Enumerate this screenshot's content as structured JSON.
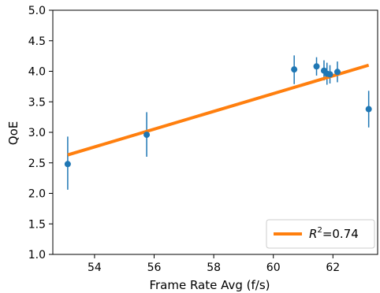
{
  "chart_data": {
    "type": "scatter",
    "xlabel": "Frame Rate Avg (f/s)",
    "ylabel": "QoE",
    "xlim": [
      52.6,
      63.5
    ],
    "ylim": [
      1.0,
      5.0
    ],
    "xticks": [
      54,
      56,
      58,
      60,
      62
    ],
    "yticks": [
      1.0,
      1.5,
      2.0,
      2.5,
      3.0,
      3.5,
      4.0,
      4.5,
      5.0
    ],
    "xtick_labels": [
      "54",
      "56",
      "58",
      "60",
      "62"
    ],
    "ytick_labels": [
      "1.0",
      "1.5",
      "2.0",
      "2.5",
      "3.0",
      "3.5",
      "4.0",
      "4.5",
      "5.0"
    ],
    "grid": false,
    "legend_position": "lower-right",
    "points": [
      {
        "x": 53.1,
        "y": 2.48,
        "err_low": 2.06,
        "err_high": 2.93
      },
      {
        "x": 55.75,
        "y": 2.96,
        "err_low": 2.6,
        "err_high": 3.33
      },
      {
        "x": 60.7,
        "y": 4.03,
        "err_low": 3.79,
        "err_high": 4.26
      },
      {
        "x": 61.45,
        "y": 4.08,
        "err_low": 3.93,
        "err_high": 4.23
      },
      {
        "x": 61.7,
        "y": 4.01,
        "err_low": 3.85,
        "err_high": 4.18
      },
      {
        "x": 61.8,
        "y": 3.96,
        "err_low": 3.78,
        "err_high": 4.14
      },
      {
        "x": 61.9,
        "y": 3.95,
        "err_low": 3.8,
        "err_high": 4.1
      },
      {
        "x": 62.15,
        "y": 3.99,
        "err_low": 3.82,
        "err_high": 4.16
      },
      {
        "x": 63.2,
        "y": 3.38,
        "err_low": 3.08,
        "err_high": 3.68
      }
    ],
    "fit_line": {
      "x": [
        53.1,
        63.2
      ],
      "y": [
        2.63,
        4.1
      ]
    },
    "legend": {
      "label_prefix": "R",
      "superscript": "2",
      "value": "=0.74"
    },
    "colors": {
      "points": "#1f77b4",
      "fit": "#ff7f0e",
      "axis": "#000000",
      "legend_border": "#cccccc"
    }
  }
}
